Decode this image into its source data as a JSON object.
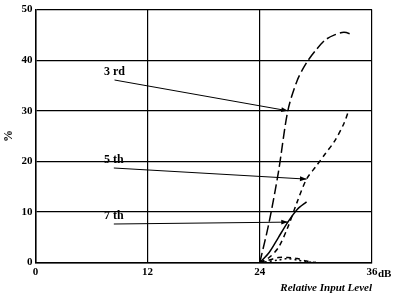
{
  "chart_data": {
    "type": "line",
    "x_label": "Relative Input Level",
    "x_unit_label": "dB",
    "y_label": "%",
    "xlim": [
      0,
      36
    ],
    "xticks": [
      0,
      12,
      24,
      36
    ],
    "ylim": [
      0,
      50
    ],
    "yticks": [
      0,
      10,
      20,
      30,
      40,
      50
    ],
    "grid": true,
    "series": [
      {
        "name": "3 rd",
        "color": "#000000",
        "line_style": "long_dashed",
        "x": [
          24,
          25,
          26,
          27,
          28,
          29,
          30,
          31,
          32,
          33,
          34
        ],
        "values": [
          0,
          8,
          18,
          30,
          36,
          39.5,
          42,
          44,
          45,
          45.5,
          45
        ]
      },
      {
        "name": "5 th",
        "color": "#000000",
        "line_style": "dashed",
        "x": [
          24,
          25,
          26,
          27,
          28,
          29,
          30,
          31,
          32,
          33,
          33.5
        ],
        "values": [
          0,
          1,
          3,
          7,
          12,
          16.5,
          19,
          21.5,
          24,
          27.5,
          30
        ]
      },
      {
        "name": "7 th",
        "color": "#000000",
        "line_style": "solid",
        "x": [
          24,
          25,
          26,
          27,
          28,
          29
        ],
        "values": [
          0,
          2,
          5,
          8,
          10.5,
          12
        ]
      },
      {
        "color": "#000000",
        "line_style": "dashed",
        "x": [
          24,
          25,
          26,
          27,
          28,
          29,
          30
        ],
        "values": [
          0,
          0.5,
          1,
          1,
          0.8,
          0.3,
          0
        ]
      },
      {
        "color": "#000000",
        "line_style": "dotted",
        "x": [
          24,
          26,
          27,
          28,
          29,
          30
        ],
        "values": [
          0,
          0.5,
          0.8,
          0.5,
          0.2,
          0
        ]
      }
    ]
  }
}
